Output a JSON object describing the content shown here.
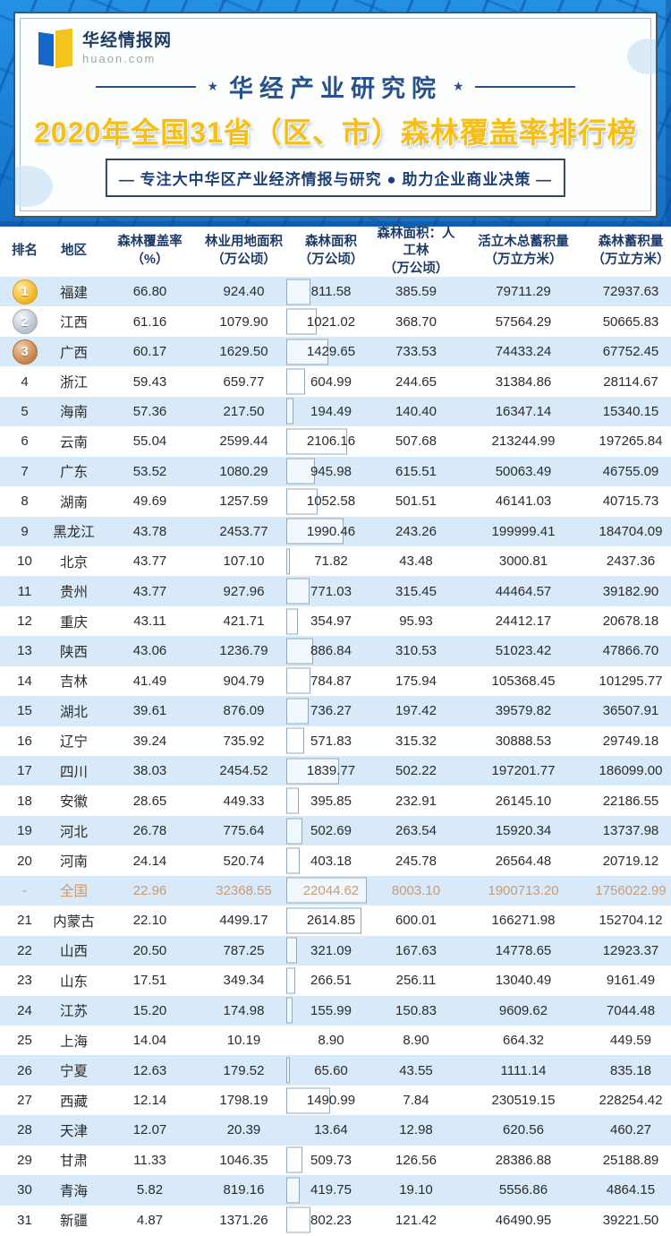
{
  "brand": {
    "name": "华经情报网",
    "domain": "huaon.com"
  },
  "header": {
    "institute": "华经产业研究院",
    "star": "★",
    "title": "2020年全国31省（区、市）森林覆盖率排行榜",
    "tagline": "—  专注大中华区产业经济情报与研究 ● 助力企业商业决策  —"
  },
  "colors": {
    "frame_blue": "#1b80d6",
    "navy_text": "#1c3a66",
    "gold_title": "#f6be19",
    "stripe_blue": "#d8eaf9",
    "national_orange": "#cd9a70",
    "medal_gold": "#efb41f",
    "medal_silver": "#b6c1cc",
    "medal_bronze": "#c58148"
  },
  "chart_data": {
    "type": "table",
    "title": "2020年全国31省（区、市）森林覆盖率排行榜",
    "columns": [
      {
        "title": "排名",
        "unit": ""
      },
      {
        "title": "地区",
        "unit": ""
      },
      {
        "title": "森林覆盖率",
        "unit": "（%）"
      },
      {
        "title": "林业用地面积",
        "unit": "（万公顷）"
      },
      {
        "title": "森林面积",
        "unit": "（万公顷）"
      },
      {
        "title": "森林面积：人工林",
        "unit": "（万公顷）"
      },
      {
        "title": "活立木总蓄积量",
        "unit": "（万立方米）"
      },
      {
        "title": "森林蓄积量",
        "unit": "（万立方米）"
      }
    ],
    "rows": [
      {
        "rank": "1",
        "region": "福建",
        "values": [
          "66.80",
          "924.40",
          "811.58",
          "385.59",
          "79711.29",
          "72937.63"
        ]
      },
      {
        "rank": "2",
        "region": "江西",
        "values": [
          "61.16",
          "1079.90",
          "1021.02",
          "368.70",
          "57564.29",
          "50665.83"
        ]
      },
      {
        "rank": "3",
        "region": "广西",
        "values": [
          "60.17",
          "1629.50",
          "1429.65",
          "733.53",
          "74433.24",
          "67752.45"
        ]
      },
      {
        "rank": "4",
        "region": "浙江",
        "values": [
          "59.43",
          "659.77",
          "604.99",
          "244.65",
          "31384.86",
          "28114.67"
        ]
      },
      {
        "rank": "5",
        "region": "海南",
        "values": [
          "57.36",
          "217.50",
          "194.49",
          "140.40",
          "16347.14",
          "15340.15"
        ]
      },
      {
        "rank": "6",
        "region": "云南",
        "values": [
          "55.04",
          "2599.44",
          "2106.16",
          "507.68",
          "213244.99",
          "197265.84"
        ]
      },
      {
        "rank": "7",
        "region": "广东",
        "values": [
          "53.52",
          "1080.29",
          "945.98",
          "615.51",
          "50063.49",
          "46755.09"
        ]
      },
      {
        "rank": "8",
        "region": "湖南",
        "values": [
          "49.69",
          "1257.59",
          "1052.58",
          "501.51",
          "46141.03",
          "40715.73"
        ]
      },
      {
        "rank": "9",
        "region": "黑龙江",
        "values": [
          "43.78",
          "2453.77",
          "1990.46",
          "243.26",
          "199999.41",
          "184704.09"
        ]
      },
      {
        "rank": "10",
        "region": "北京",
        "values": [
          "43.77",
          "107.10",
          "71.82",
          "43.48",
          "3000.81",
          "2437.36"
        ]
      },
      {
        "rank": "11",
        "region": "贵州",
        "values": [
          "43.77",
          "927.96",
          "771.03",
          "315.45",
          "44464.57",
          "39182.90"
        ]
      },
      {
        "rank": "12",
        "region": "重庆",
        "values": [
          "43.11",
          "421.71",
          "354.97",
          "95.93",
          "24412.17",
          "20678.18"
        ]
      },
      {
        "rank": "13",
        "region": "陕西",
        "values": [
          "43.06",
          "1236.79",
          "886.84",
          "310.53",
          "51023.42",
          "47866.70"
        ]
      },
      {
        "rank": "14",
        "region": "吉林",
        "values": [
          "41.49",
          "904.79",
          "784.87",
          "175.94",
          "105368.45",
          "101295.77"
        ]
      },
      {
        "rank": "15",
        "region": "湖北",
        "values": [
          "39.61",
          "876.09",
          "736.27",
          "197.42",
          "39579.82",
          "36507.91"
        ]
      },
      {
        "rank": "16",
        "region": "辽宁",
        "values": [
          "39.24",
          "735.92",
          "571.83",
          "315.32",
          "30888.53",
          "29749.18"
        ]
      },
      {
        "rank": "17",
        "region": "四川",
        "values": [
          "38.03",
          "2454.52",
          "1839.77",
          "502.22",
          "197201.77",
          "186099.00"
        ]
      },
      {
        "rank": "18",
        "region": "安徽",
        "values": [
          "28.65",
          "449.33",
          "395.85",
          "232.91",
          "26145.10",
          "22186.55"
        ]
      },
      {
        "rank": "19",
        "region": "河北",
        "values": [
          "26.78",
          "775.64",
          "502.69",
          "263.54",
          "15920.34",
          "13737.98"
        ]
      },
      {
        "rank": "20",
        "region": "河南",
        "values": [
          "24.14",
          "520.74",
          "403.18",
          "245.78",
          "26564.48",
          "20719.12"
        ]
      },
      {
        "rank": "-",
        "region": "全国",
        "national": true,
        "values": [
          "22.96",
          "32368.55",
          "22044.62",
          "8003.10",
          "1900713.20",
          "1756022.99"
        ]
      },
      {
        "rank": "21",
        "region": "内蒙古",
        "values": [
          "22.10",
          "4499.17",
          "2614.85",
          "600.01",
          "166271.98",
          "152704.12"
        ]
      },
      {
        "rank": "22",
        "region": "山西",
        "values": [
          "20.50",
          "787.25",
          "321.09",
          "167.63",
          "14778.65",
          "12923.37"
        ]
      },
      {
        "rank": "23",
        "region": "山东",
        "values": [
          "17.51",
          "349.34",
          "266.51",
          "256.11",
          "13040.49",
          "9161.49"
        ]
      },
      {
        "rank": "24",
        "region": "江苏",
        "values": [
          "15.20",
          "174.98",
          "155.99",
          "150.83",
          "9609.62",
          "7044.48"
        ]
      },
      {
        "rank": "25",
        "region": "上海",
        "values": [
          "14.04",
          "10.19",
          "8.90",
          "8.90",
          "664.32",
          "449.59"
        ]
      },
      {
        "rank": "26",
        "region": "宁夏",
        "values": [
          "12.63",
          "179.52",
          "65.60",
          "43.55",
          "1111.14",
          "835.18"
        ]
      },
      {
        "rank": "27",
        "region": "西藏",
        "values": [
          "12.14",
          "1798.19",
          "1490.99",
          "7.84",
          "230519.15",
          "228254.42"
        ]
      },
      {
        "rank": "28",
        "region": "天津",
        "values": [
          "12.07",
          "20.39",
          "13.64",
          "12.98",
          "620.56",
          "460.27"
        ]
      },
      {
        "rank": "29",
        "region": "甘肃",
        "values": [
          "11.33",
          "1046.35",
          "509.73",
          "126.56",
          "28386.88",
          "25188.89"
        ]
      },
      {
        "rank": "30",
        "region": "青海",
        "values": [
          "5.82",
          "819.16",
          "419.75",
          "19.10",
          "5556.86",
          "4864.15"
        ]
      },
      {
        "rank": "31",
        "region": "新疆",
        "values": [
          "4.87",
          "1371.26",
          "802.23",
          "121.42",
          "46490.95",
          "39221.50"
        ]
      }
    ]
  }
}
